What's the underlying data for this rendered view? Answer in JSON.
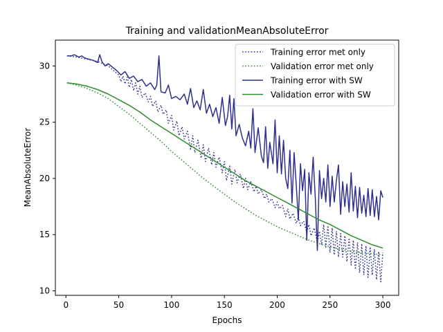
{
  "chart_data": {
    "type": "line",
    "title": "Training and validationMeanAbsoluteError",
    "xlabel": "Epochs",
    "ylabel": "MeanAbsoluteError",
    "xlim": [
      -10,
      315
    ],
    "ylim": [
      9.6,
      32.3
    ],
    "xticks": [
      0,
      50,
      100,
      150,
      200,
      250,
      300
    ],
    "yticks": [
      10,
      15,
      20,
      25,
      30
    ],
    "grid": false,
    "legend_position": "top-right",
    "series": [
      {
        "name": "Training error met only",
        "color": "#2e2e8f",
        "style": "dotted",
        "points": [
          [
            1,
            30.9
          ],
          [
            10,
            30.8
          ],
          [
            20,
            30.6
          ],
          [
            30,
            30.4
          ],
          [
            40,
            30.0
          ],
          [
            45,
            29.6
          ],
          [
            50,
            29.2
          ],
          [
            52,
            28.6
          ],
          [
            54,
            29.1
          ],
          [
            56,
            28.4
          ],
          [
            58,
            29.0
          ],
          [
            60,
            28.1
          ],
          [
            62,
            28.8
          ],
          [
            64,
            27.8
          ],
          [
            66,
            28.5
          ],
          [
            68,
            27.5
          ],
          [
            70,
            28.2
          ],
          [
            72,
            27.2
          ],
          [
            75,
            27.6
          ],
          [
            78,
            26.8
          ],
          [
            80,
            27.3
          ],
          [
            82,
            26.4
          ],
          [
            85,
            26.9
          ],
          [
            87,
            25.9
          ],
          [
            90,
            26.5
          ],
          [
            92,
            25.7
          ],
          [
            95,
            26.1
          ],
          [
            97,
            24.9
          ],
          [
            100,
            25.6
          ],
          [
            102,
            24.3
          ],
          [
            105,
            25.1
          ],
          [
            107,
            23.8
          ],
          [
            110,
            24.6
          ],
          [
            112,
            23.5
          ],
          [
            115,
            24.2
          ],
          [
            118,
            22.6
          ],
          [
            120,
            23.8
          ],
          [
            122,
            22.3
          ],
          [
            125,
            23.4
          ],
          [
            128,
            21.8
          ],
          [
            130,
            23.0
          ],
          [
            132,
            21.5
          ],
          [
            135,
            22.7
          ],
          [
            138,
            21.2
          ],
          [
            140,
            22.3
          ],
          [
            142,
            21.0
          ],
          [
            145,
            21.9
          ],
          [
            148,
            20.5
          ],
          [
            150,
            21.5
          ],
          [
            152,
            19.8
          ],
          [
            155,
            21.1
          ],
          [
            157,
            19.5
          ],
          [
            160,
            20.8
          ],
          [
            162,
            19.6
          ],
          [
            165,
            20.4
          ],
          [
            168,
            19.1
          ],
          [
            170,
            20.0
          ],
          [
            172,
            19.0
          ],
          [
            175,
            19.7
          ],
          [
            178,
            18.8
          ],
          [
            180,
            19.3
          ],
          [
            182,
            18.6
          ],
          [
            185,
            19.0
          ],
          [
            188,
            18.2
          ],
          [
            190,
            18.6
          ],
          [
            192,
            17.9
          ],
          [
            195,
            18.2
          ],
          [
            198,
            17.4
          ],
          [
            200,
            17.9
          ],
          [
            202,
            17.3
          ],
          [
            205,
            17.6
          ],
          [
            208,
            16.6
          ],
          [
            210,
            17.3
          ],
          [
            212,
            16.4
          ],
          [
            215,
            16.9
          ],
          [
            218,
            16.0
          ],
          [
            220,
            16.6
          ],
          [
            222,
            15.8
          ],
          [
            225,
            16.2
          ],
          [
            228,
            15.2
          ],
          [
            230,
            15.9
          ],
          [
            232,
            14.9
          ],
          [
            235,
            15.6
          ],
          [
            238,
            14.3
          ],
          [
            240,
            15.3
          ],
          [
            242,
            14.1
          ],
          [
            244,
            15.9
          ],
          [
            246,
            13.9
          ],
          [
            248,
            15.8
          ],
          [
            250,
            13.4
          ],
          [
            252,
            15.6
          ],
          [
            254,
            13.2
          ],
          [
            256,
            15.3
          ],
          [
            258,
            13.0
          ],
          [
            260,
            15.1
          ],
          [
            262,
            13.0
          ],
          [
            264,
            14.9
          ],
          [
            266,
            12.6
          ],
          [
            268,
            14.7
          ],
          [
            270,
            12.3
          ],
          [
            272,
            14.5
          ],
          [
            274,
            11.9
          ],
          [
            276,
            14.3
          ],
          [
            278,
            11.6
          ],
          [
            280,
            14.2
          ],
          [
            282,
            11.4
          ],
          [
            284,
            14.0
          ],
          [
            286,
            11.2
          ],
          [
            288,
            13.9
          ],
          [
            290,
            11.4
          ],
          [
            292,
            13.7
          ],
          [
            294,
            11.0
          ],
          [
            296,
            13.5
          ],
          [
            298,
            10.8
          ],
          [
            300,
            13.4
          ]
        ]
      },
      {
        "name": "Validation error met only",
        "color": "#2e8b2e",
        "style": "dotted",
        "points": [
          [
            1,
            28.5
          ],
          [
            10,
            28.3
          ],
          [
            20,
            28.0
          ],
          [
            30,
            27.6
          ],
          [
            40,
            27.1
          ],
          [
            50,
            26.4
          ],
          [
            60,
            25.7
          ],
          [
            70,
            24.9
          ],
          [
            80,
            24.1
          ],
          [
            90,
            23.3
          ],
          [
            100,
            22.4
          ],
          [
            110,
            21.6
          ],
          [
            120,
            20.8
          ],
          [
            130,
            20.0
          ],
          [
            140,
            19.3
          ],
          [
            150,
            18.6
          ],
          [
            160,
            17.9
          ],
          [
            170,
            17.3
          ],
          [
            180,
            16.7
          ],
          [
            190,
            16.2
          ],
          [
            200,
            15.7
          ],
          [
            210,
            15.3
          ],
          [
            220,
            14.9
          ],
          [
            230,
            14.5
          ],
          [
            240,
            14.2
          ],
          [
            250,
            13.9
          ],
          [
            260,
            13.7
          ],
          [
            270,
            13.5
          ],
          [
            280,
            13.4
          ],
          [
            290,
            13.3
          ],
          [
            300,
            13.2
          ]
        ]
      },
      {
        "name": "Training error with SW",
        "color": "#2e2e8f",
        "style": "solid",
        "points": [
          [
            1,
            30.9
          ],
          [
            5,
            30.9
          ],
          [
            8,
            31.0
          ],
          [
            12,
            30.8
          ],
          [
            15,
            30.9
          ],
          [
            18,
            30.7
          ],
          [
            22,
            30.6
          ],
          [
            26,
            30.5
          ],
          [
            30,
            30.3
          ],
          [
            32,
            31.0
          ],
          [
            34,
            30.4
          ],
          [
            37,
            30.0
          ],
          [
            40,
            30.2
          ],
          [
            44,
            29.9
          ],
          [
            48,
            29.6
          ],
          [
            52,
            29.2
          ],
          [
            56,
            29.5
          ],
          [
            60,
            28.9
          ],
          [
            64,
            29.1
          ],
          [
            68,
            28.6
          ],
          [
            72,
            28.8
          ],
          [
            76,
            28.2
          ],
          [
            80,
            28.5
          ],
          [
            84,
            27.9
          ],
          [
            86,
            28.3
          ],
          [
            88,
            30.9
          ],
          [
            90,
            27.7
          ],
          [
            94,
            27.6
          ],
          [
            97,
            28.3
          ],
          [
            100,
            27.1
          ],
          [
            104,
            27.3
          ],
          [
            108,
            27.0
          ],
          [
            112,
            27.5
          ],
          [
            115,
            26.6
          ],
          [
            118,
            28.0
          ],
          [
            121,
            26.3
          ],
          [
            124,
            26.9
          ],
          [
            127,
            26.1
          ],
          [
            130,
            27.9
          ],
          [
            133,
            25.8
          ],
          [
            136,
            26.6
          ],
          [
            139,
            25.5
          ],
          [
            142,
            26.3
          ],
          [
            145,
            24.9
          ],
          [
            148,
            27.2
          ],
          [
            151,
            24.7
          ],
          [
            153,
            25.5
          ],
          [
            155,
            27.4
          ],
          [
            157,
            24.4
          ],
          [
            159,
            27.1
          ],
          [
            161,
            23.8
          ],
          [
            164,
            24.8
          ],
          [
            167,
            23.6
          ],
          [
            170,
            22.9
          ],
          [
            173,
            24.2
          ],
          [
            175,
            22.7
          ],
          [
            177,
            26.2
          ],
          [
            179,
            22.3
          ],
          [
            182,
            24.5
          ],
          [
            185,
            22.0
          ],
          [
            187,
            21.4
          ],
          [
            189,
            24.6
          ],
          [
            191,
            20.9
          ],
          [
            193,
            23.2
          ],
          [
            196,
            21.3
          ],
          [
            198,
            25.2
          ],
          [
            200,
            20.5
          ],
          [
            202,
            23.8
          ],
          [
            204,
            20.4
          ],
          [
            206,
            23.4
          ],
          [
            208,
            20.0
          ],
          [
            210,
            19.1
          ],
          [
            212,
            22.5
          ],
          [
            214,
            17.8
          ],
          [
            216,
            22.3
          ],
          [
            218,
            19.4
          ],
          [
            220,
            16.3
          ],
          [
            222,
            21.3
          ],
          [
            224,
            18.9
          ],
          [
            226,
            20.8
          ],
          [
            228,
            14.5
          ],
          [
            230,
            20.5
          ],
          [
            232,
            18.6
          ],
          [
            234,
            21.9
          ],
          [
            236,
            18.4
          ],
          [
            238,
            13.6
          ],
          [
            240,
            20.7
          ],
          [
            242,
            18.2
          ],
          [
            244,
            20.0
          ],
          [
            246,
            17.9
          ],
          [
            248,
            21.2
          ],
          [
            250,
            17.5
          ],
          [
            252,
            20.2
          ],
          [
            254,
            17.9
          ],
          [
            256,
            19.8
          ],
          [
            258,
            21.2
          ],
          [
            260,
            16.8
          ],
          [
            262,
            19.7
          ],
          [
            264,
            17.5
          ],
          [
            266,
            19.5
          ],
          [
            268,
            17.0
          ],
          [
            270,
            20.5
          ],
          [
            272,
            17.1
          ],
          [
            274,
            19.3
          ],
          [
            276,
            16.5
          ],
          [
            278,
            19.2
          ],
          [
            280,
            16.9
          ],
          [
            282,
            18.5
          ],
          [
            284,
            16.6
          ],
          [
            286,
            19.1
          ],
          [
            288,
            16.7
          ],
          [
            290,
            19.0
          ],
          [
            292,
            16.6
          ],
          [
            294,
            18.4
          ],
          [
            296,
            16.3
          ],
          [
            298,
            18.9
          ],
          [
            300,
            18.3
          ]
        ]
      },
      {
        "name": "Validation error with SW",
        "color": "#2e8b2e",
        "style": "solid",
        "points": [
          [
            1,
            28.5
          ],
          [
            10,
            28.4
          ],
          [
            20,
            28.2
          ],
          [
            30,
            27.9
          ],
          [
            40,
            27.5
          ],
          [
            50,
            27.0
          ],
          [
            60,
            26.5
          ],
          [
            70,
            25.9
          ],
          [
            80,
            25.2
          ],
          [
            90,
            24.6
          ],
          [
            100,
            24.0
          ],
          [
            110,
            23.4
          ],
          [
            120,
            22.8
          ],
          [
            130,
            22.2
          ],
          [
            140,
            21.6
          ],
          [
            150,
            21.0
          ],
          [
            160,
            20.4
          ],
          [
            170,
            19.8
          ],
          [
            180,
            19.3
          ],
          [
            190,
            18.8
          ],
          [
            200,
            18.3
          ],
          [
            210,
            17.8
          ],
          [
            220,
            17.3
          ],
          [
            230,
            16.8
          ],
          [
            240,
            16.3
          ],
          [
            250,
            15.9
          ],
          [
            260,
            15.4
          ],
          [
            270,
            14.9
          ],
          [
            280,
            14.5
          ],
          [
            290,
            14.1
          ],
          [
            300,
            13.8
          ]
        ]
      }
    ]
  }
}
